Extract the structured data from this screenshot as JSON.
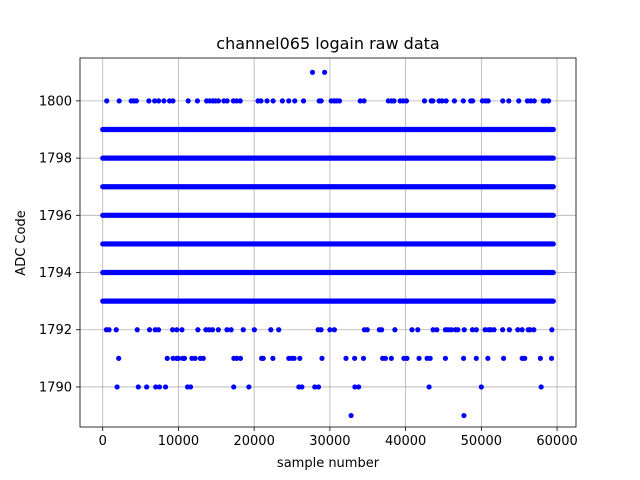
{
  "chart_data": {
    "type": "scatter",
    "title": "channel065 logain raw data",
    "xlabel": "sample number",
    "ylabel": "ADC Code",
    "xlim": [
      -3000,
      62500
    ],
    "ylim": [
      1788.6,
      1801.5
    ],
    "xticks": [
      0,
      10000,
      20000,
      30000,
      40000,
      50000,
      60000
    ],
    "xtick_labels": [
      "0",
      "10000",
      "20000",
      "30000",
      "40000",
      "50000",
      "60000"
    ],
    "yticks": [
      1790,
      1792,
      1794,
      1796,
      1798,
      1800
    ],
    "ytick_labels": [
      "1790",
      "1792",
      "1794",
      "1796",
      "1798",
      "1800"
    ],
    "grid": true,
    "marker_color": "#0000ff",
    "series": [
      {
        "x": [
          27700,
          29300,
          32800,
          47700,
          1900,
          4700,
          5800,
          7000,
          7500,
          8300,
          11200,
          11600,
          17300,
          19300,
          25900,
          26300,
          28000,
          28500,
          33300,
          33800,
          43100,
          50000,
          57900
        ],
        "y": [
          1801,
          1801,
          1789,
          1789,
          1790,
          1790,
          1790,
          1790,
          1790,
          1790,
          1790,
          1790,
          1790,
          1790,
          1790,
          1790,
          1790,
          1790,
          1790,
          1790,
          1790,
          1790,
          1790
        ]
      }
    ],
    "dense_rows": [
      {
        "y": 1793,
        "x_range": [
          0,
          59500
        ]
      },
      {
        "y": 1794,
        "x_range": [
          0,
          59500
        ]
      },
      {
        "y": 1795,
        "x_range": [
          0,
          59500
        ]
      },
      {
        "y": 1796,
        "x_range": [
          0,
          59500
        ]
      },
      {
        "y": 1797,
        "x_range": [
          0,
          59500
        ]
      },
      {
        "y": 1798,
        "x_range": [
          0,
          59500
        ]
      },
      {
        "y": 1799,
        "x_range": [
          0,
          59500
        ]
      }
    ],
    "sparse_rows": [
      {
        "y": 1800,
        "x_range": [
          0,
          59500
        ],
        "density": 0.45
      },
      {
        "y": 1792,
        "x_range": [
          0,
          59500
        ],
        "density": 0.4
      },
      {
        "y": 1791,
        "x_range": [
          0,
          59500
        ],
        "density": 0.3
      }
    ]
  }
}
